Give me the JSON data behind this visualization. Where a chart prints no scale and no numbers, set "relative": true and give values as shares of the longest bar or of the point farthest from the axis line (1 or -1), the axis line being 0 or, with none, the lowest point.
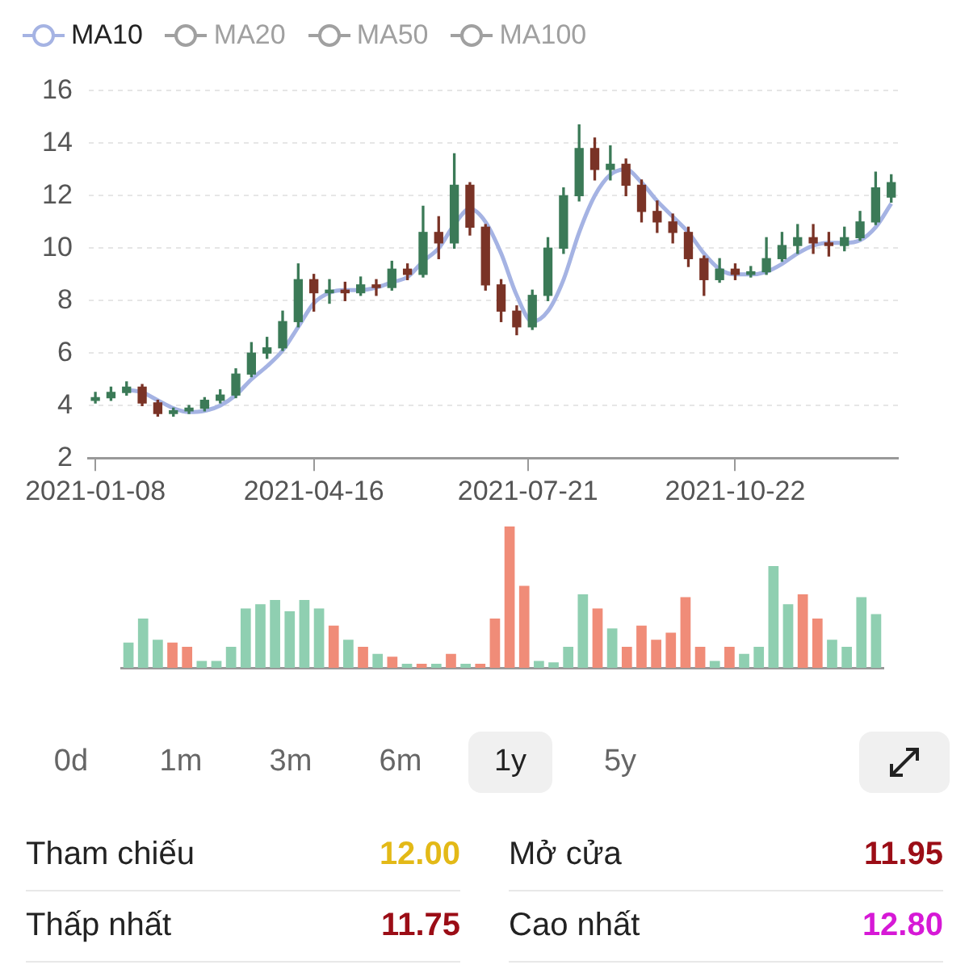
{
  "chart_data": [
    {
      "type": "candlestick",
      "x": [
        "2021-01-08",
        "2021-01-15",
        "2021-01-22",
        "2021-01-29",
        "2021-02-05",
        "2021-02-12",
        "2021-02-19",
        "2021-02-26",
        "2021-03-05",
        "2021-03-12",
        "2021-03-19",
        "2021-03-26",
        "2021-04-02",
        "2021-04-09",
        "2021-04-16",
        "2021-04-23",
        "2021-04-30",
        "2021-05-07",
        "2021-05-14",
        "2021-05-21",
        "2021-05-28",
        "2021-06-04",
        "2021-06-11",
        "2021-06-18",
        "2021-06-25",
        "2021-07-02",
        "2021-07-09",
        "2021-07-16",
        "2021-07-23",
        "2021-07-30",
        "2021-08-06",
        "2021-08-13",
        "2021-08-20",
        "2021-08-27",
        "2021-09-03",
        "2021-09-10",
        "2021-09-17",
        "2021-09-24",
        "2021-10-01",
        "2021-10-08",
        "2021-10-15",
        "2021-10-22",
        "2021-10-29",
        "2021-11-05",
        "2021-11-12",
        "2021-11-19",
        "2021-11-26",
        "2021-12-03",
        "2021-12-10",
        "2021-12-17",
        "2021-12-24",
        "2021-12-31"
      ],
      "ohlc": [
        [
          4.2,
          4.5,
          4.1,
          4.3
        ],
        [
          4.3,
          4.7,
          4.2,
          4.5
        ],
        [
          4.5,
          4.9,
          4.4,
          4.7
        ],
        [
          4.7,
          4.8,
          4.0,
          4.1
        ],
        [
          4.1,
          4.2,
          3.6,
          3.7
        ],
        [
          3.7,
          3.9,
          3.6,
          3.8
        ],
        [
          3.8,
          4.0,
          3.7,
          3.9
        ],
        [
          3.9,
          4.3,
          3.8,
          4.2
        ],
        [
          4.2,
          4.6,
          4.1,
          4.4
        ],
        [
          4.4,
          5.4,
          4.3,
          5.2
        ],
        [
          5.2,
          6.4,
          5.1,
          6.0
        ],
        [
          6.0,
          6.6,
          5.8,
          6.2
        ],
        [
          6.2,
          7.6,
          6.1,
          7.2
        ],
        [
          7.2,
          9.4,
          7.0,
          8.8
        ],
        [
          8.8,
          9.0,
          7.6,
          8.3
        ],
        [
          8.3,
          8.8,
          7.9,
          8.4
        ],
        [
          8.4,
          8.7,
          8.0,
          8.3
        ],
        [
          8.3,
          8.9,
          8.2,
          8.6
        ],
        [
          8.6,
          8.8,
          8.2,
          8.5
        ],
        [
          8.5,
          9.5,
          8.4,
          9.2
        ],
        [
          9.2,
          9.4,
          8.8,
          9.0
        ],
        [
          9.0,
          11.6,
          8.9,
          10.6
        ],
        [
          10.6,
          11.2,
          9.6,
          10.2
        ],
        [
          10.2,
          13.6,
          10.0,
          12.4
        ],
        [
          12.4,
          12.5,
          10.5,
          10.8
        ],
        [
          10.8,
          10.9,
          8.4,
          8.6
        ],
        [
          8.6,
          8.8,
          7.2,
          7.6
        ],
        [
          7.6,
          7.8,
          6.7,
          7.0
        ],
        [
          7.0,
          8.4,
          6.9,
          8.2
        ],
        [
          8.2,
          10.4,
          8.0,
          10.0
        ],
        [
          10.0,
          12.3,
          9.8,
          12.0
        ],
        [
          12.0,
          14.7,
          11.8,
          13.8
        ],
        [
          13.8,
          14.2,
          12.6,
          13.0
        ],
        [
          13.0,
          13.9,
          12.6,
          13.2
        ],
        [
          13.2,
          13.4,
          12.0,
          12.4
        ],
        [
          12.4,
          12.6,
          11.0,
          11.4
        ],
        [
          11.4,
          11.8,
          10.6,
          11.0
        ],
        [
          11.0,
          11.3,
          10.2,
          10.6
        ],
        [
          10.6,
          10.8,
          9.3,
          9.6
        ],
        [
          9.6,
          9.7,
          8.2,
          8.8
        ],
        [
          8.8,
          9.6,
          8.7,
          9.2
        ],
        [
          9.2,
          9.4,
          8.8,
          9.0
        ],
        [
          9.0,
          9.3,
          8.9,
          9.1
        ],
        [
          9.1,
          10.4,
          9.0,
          9.6
        ],
        [
          9.6,
          10.6,
          9.5,
          10.1
        ],
        [
          10.1,
          10.9,
          9.8,
          10.4
        ],
        [
          10.4,
          10.9,
          9.8,
          10.2
        ],
        [
          10.2,
          10.6,
          9.7,
          10.1
        ],
        [
          10.1,
          10.8,
          9.9,
          10.4
        ],
        [
          10.4,
          11.4,
          10.3,
          11.0
        ],
        [
          11.0,
          12.9,
          10.9,
          12.3
        ],
        [
          11.95,
          12.8,
          11.75,
          12.5
        ]
      ],
      "series": [
        {
          "name": "MA10",
          "type": "line",
          "color": "#a5b3e3",
          "values": [
            null,
            null,
            4.6,
            4.5,
            4.2,
            3.9,
            3.75,
            3.8,
            4.0,
            4.4,
            5.0,
            5.5,
            6.1,
            7.0,
            7.9,
            8.3,
            8.4,
            8.4,
            8.5,
            8.7,
            8.9,
            9.5,
            10.0,
            10.9,
            11.5,
            11.0,
            9.8,
            8.2,
            7.2,
            7.6,
            8.8,
            10.6,
            12.0,
            12.8,
            13.0,
            12.5,
            11.8,
            11.2,
            10.6,
            9.8,
            9.2,
            9.0,
            9.0,
            9.1,
            9.4,
            9.8,
            10.1,
            10.2,
            10.2,
            10.3,
            10.8,
            11.7
          ]
        },
        {
          "name": "MA20",
          "type": "line",
          "color": "#a0a0a0",
          "values": [
            null,
            null,
            null,
            null,
            null,
            null,
            null,
            null,
            null,
            null,
            null,
            null,
            null,
            null,
            null,
            null,
            null,
            null,
            null,
            null,
            null,
            null,
            null,
            null,
            null,
            null,
            null,
            null,
            null,
            null,
            null,
            null,
            null,
            null,
            null,
            null,
            null,
            null,
            null,
            null,
            null,
            null,
            null,
            null,
            null,
            null,
            null,
            null,
            null,
            null,
            null,
            null
          ]
        },
        {
          "name": "MA50",
          "type": "line",
          "color": "#a0a0a0",
          "values": [
            null,
            null,
            null,
            null,
            null,
            null,
            null,
            null,
            null,
            null,
            null,
            null,
            null,
            null,
            null,
            null,
            null,
            null,
            null,
            null,
            null,
            null,
            null,
            null,
            null,
            null,
            null,
            null,
            null,
            null,
            null,
            null,
            null,
            null,
            null,
            null,
            null,
            null,
            null,
            null,
            null,
            null,
            null,
            null,
            null,
            null,
            null,
            null,
            null,
            null,
            null,
            null
          ]
        },
        {
          "name": "MA100",
          "type": "line",
          "color": "#a0a0a0",
          "values": [
            null,
            null,
            null,
            null,
            null,
            null,
            null,
            null,
            null,
            null,
            null,
            null,
            null,
            null,
            null,
            null,
            null,
            null,
            null,
            null,
            null,
            null,
            null,
            null,
            null,
            null,
            null,
            null,
            null,
            null,
            null,
            null,
            null,
            null,
            null,
            null,
            null,
            null,
            null,
            null,
            null,
            null,
            null,
            null,
            null,
            null,
            null,
            null,
            null,
            null,
            null,
            null
          ]
        }
      ],
      "xlim": [
        "2021-01-05",
        "2022-01-03"
      ],
      "xticks": [
        "2021-01-08",
        "2021-04-16",
        "2021-07-21",
        "2021-10-22"
      ],
      "ylim": [
        2,
        16
      ],
      "yticks": [
        2,
        4,
        6,
        8,
        10,
        12,
        14,
        16
      ],
      "grid": "y",
      "legend": "top left",
      "marker": "none"
    },
    {
      "type": "bar",
      "relative": true,
      "categories": [
        null,
        null,
        null,
        null,
        null,
        null,
        null,
        null,
        null,
        null,
        null,
        null,
        null,
        null,
        null,
        null,
        null,
        null,
        null,
        null,
        null,
        null,
        null,
        null,
        null,
        null,
        null,
        null,
        null,
        null,
        null,
        null,
        null,
        null,
        null,
        null,
        null,
        null,
        null,
        null,
        null,
        null,
        null,
        null,
        null,
        null,
        null,
        null,
        null,
        null,
        null,
        null
      ],
      "values": [
        0.18,
        0.35,
        0.2,
        0.18,
        0.15,
        0.05,
        0.05,
        0.15,
        0.42,
        0.45,
        0.48,
        0.4,
        0.48,
        0.42,
        0.3,
        0.2,
        0.15,
        0.1,
        0.08,
        0.03,
        0.03,
        0.03,
        0.1,
        0.03,
        0.03,
        0.35,
        1,
        0.58,
        0.05,
        0.04,
        0.15,
        0.52,
        0.42,
        0.28,
        0.15,
        0.3,
        0.2,
        0.25,
        0.5,
        0.15,
        0.05,
        0.15,
        0.1,
        0.15,
        0.72,
        0.45,
        0.52,
        0.35,
        0.2,
        0.15,
        0.5,
        0.38
      ],
      "colors": [
        "#8fcfb1",
        "#8fcfb1",
        "#8fcfb1",
        "#f08c78",
        "#f08c78",
        "#8fcfb1",
        "#8fcfb1",
        "#8fcfb1",
        "#8fcfb1",
        "#8fcfb1",
        "#8fcfb1",
        "#8fcfb1",
        "#8fcfb1",
        "#8fcfb1",
        "#f08c78",
        "#8fcfb1",
        "#f08c78",
        "#8fcfb1",
        "#f08c78",
        "#8fcfb1",
        "#f08c78",
        "#8fcfb1",
        "#f08c78",
        "#8fcfb1",
        "#f08c78",
        "#f08c78",
        "#f08c78",
        "#f08c78",
        "#8fcfb1",
        "#8fcfb1",
        "#8fcfb1",
        "#8fcfb1",
        "#f08c78",
        "#8fcfb1",
        "#f08c78",
        "#f08c78",
        "#f08c78",
        "#f08c78",
        "#f08c78",
        "#f08c78",
        "#8fcfb1",
        "#f08c78",
        "#8fcfb1",
        "#8fcfb1",
        "#8fcfb1",
        "#8fcfb1",
        "#f08c78",
        "#f08c78",
        "#8fcfb1",
        "#8fcfb1",
        "#8fcfb1",
        "#8fcfb1"
      ]
    },
    {
      "type": "other",
      "annotations": [
        "0d",
        "1m",
        "3m",
        "6m",
        "1y",
        "5y",
        "Tham chiếu",
        "12.00",
        "Mở cửa",
        "11.95",
        "Thấp nhất",
        "11.75",
        "Cao nhất",
        "12.80"
      ]
    }
  ]
}
